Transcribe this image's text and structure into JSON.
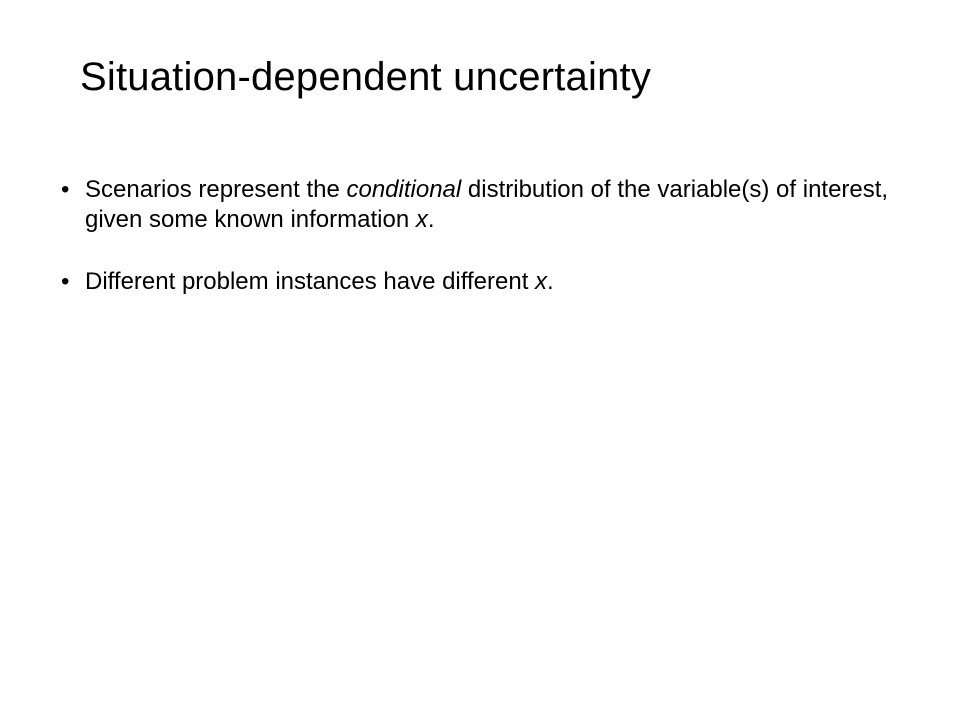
{
  "slide": {
    "title": "Situation-dependent uncertainty",
    "title_fontsize": 40,
    "title_color": "#000000",
    "background_color": "#ffffff",
    "bullets": [
      {
        "segments": [
          {
            "text": "Scenarios represent the ",
            "italic": false
          },
          {
            "text": "conditional",
            "italic": true
          },
          {
            "text": " distribution of the variable(s) of interest, given some known information ",
            "italic": false
          },
          {
            "text": "x",
            "italic": true
          },
          {
            "text": ".",
            "italic": false
          }
        ]
      },
      {
        "segments": [
          {
            "text": "Different problem instances have different ",
            "italic": false
          },
          {
            "text": "x",
            "italic": true
          },
          {
            "text": ".",
            "italic": false
          }
        ]
      }
    ],
    "body_fontsize": 24,
    "body_color": "#000000",
    "font_family": "Verdana, Geneva, sans-serif"
  }
}
